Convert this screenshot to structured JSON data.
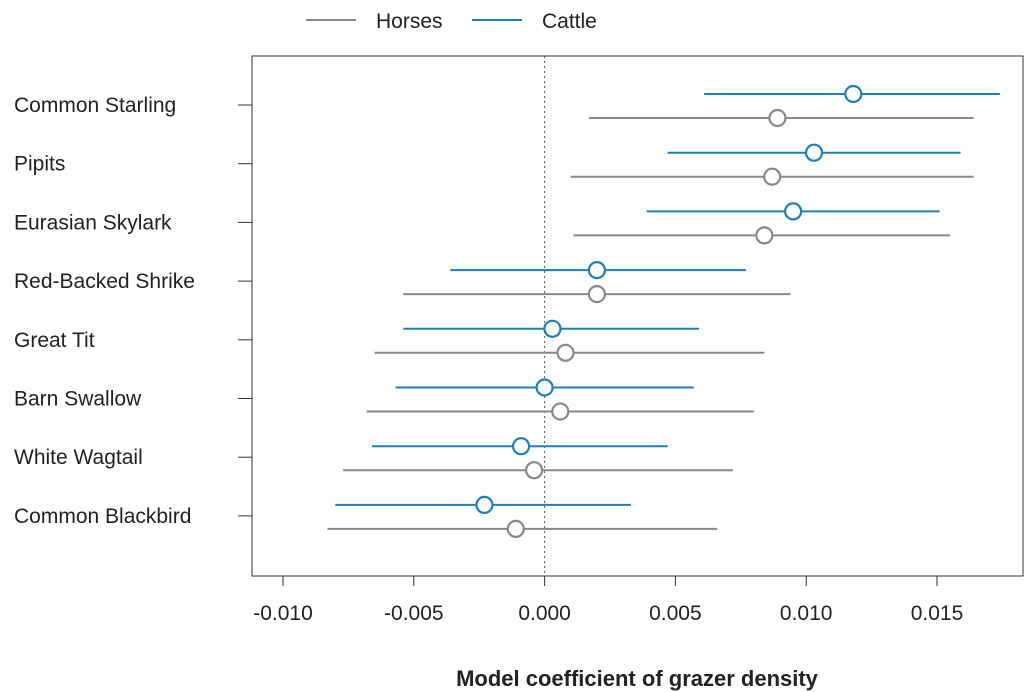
{
  "chart_data": {
    "type": "scatter",
    "subtype": "forest-plot-with-confidence-intervals",
    "xlabel": "Model coefficient of grazer density",
    "ylabel": "",
    "xlim": [
      -0.0105,
      0.0175
    ],
    "xticks": [
      -0.01,
      -0.005,
      0.0,
      0.005,
      0.01,
      0.015
    ],
    "xtick_labels": [
      "-0.010",
      "-0.005",
      "0.000",
      "0.005",
      "0.010",
      "0.015"
    ],
    "reference_line": {
      "x": 0,
      "style": "dotted"
    },
    "grid": false,
    "legend": {
      "placement": "top",
      "entries": [
        "Horses",
        "Cattle"
      ]
    },
    "categories": [
      "Common Starling",
      "Pipits",
      "Eurasian Skylark",
      "Red-Backed Shrike",
      "Great Tit",
      "Barn Swallow",
      "White Wagtail",
      "Common Blackbird"
    ],
    "series": [
      {
        "name": "Cattle",
        "color": "#1a7fba",
        "estimate": [
          0.0118,
          0.0103,
          0.0095,
          0.002,
          0.0003,
          0.0,
          -0.0009,
          -0.0023
        ],
        "lower": [
          0.0061,
          0.0047,
          0.0039,
          -0.0036,
          -0.0054,
          -0.0057,
          -0.0066,
          -0.008
        ],
        "upper": [
          0.0174,
          0.0159,
          0.0151,
          0.0077,
          0.0059,
          0.0057,
          0.0047,
          0.0033
        ]
      },
      {
        "name": "Horses",
        "color": "#888888",
        "estimate": [
          0.0089,
          0.0087,
          0.0084,
          0.002,
          0.0008,
          0.0006,
          -0.0004,
          -0.0011
        ],
        "lower": [
          0.0017,
          0.001,
          0.0011,
          -0.0054,
          -0.0065,
          -0.0068,
          -0.0077,
          -0.0083
        ],
        "upper": [
          0.0164,
          0.0164,
          0.0155,
          0.0094,
          0.0084,
          0.008,
          0.0072,
          0.0066
        ]
      }
    ]
  }
}
